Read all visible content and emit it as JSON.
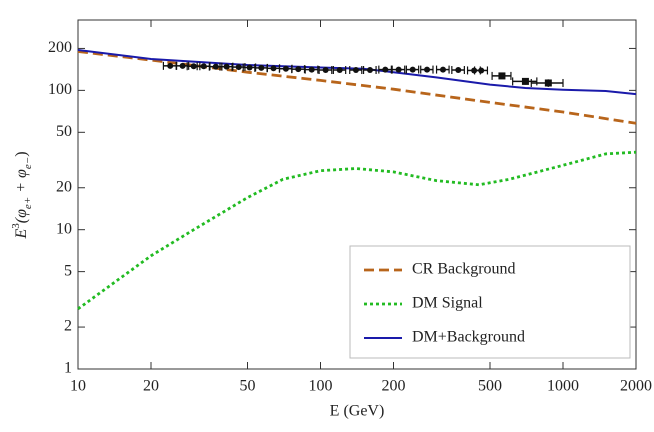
{
  "chart_data": {
    "type": "line",
    "xlabel": "E (GeV)",
    "ylabel": [
      "E",
      "3",
      "(φ",
      "e+",
      " + φ",
      "e−",
      ")"
    ],
    "xscale": "log",
    "yscale": "log",
    "xlim": [
      10,
      2000
    ],
    "ylim": [
      1,
      320
    ],
    "xticks": [
      10,
      20,
      50,
      100,
      200,
      500,
      1000,
      2000
    ],
    "yticks": [
      1,
      2,
      5,
      10,
      20,
      50,
      100,
      200
    ],
    "grid": false,
    "legend": "lower right",
    "series": [
      {
        "name": "CR Background",
        "color": "#b8651b",
        "dash": "dashed",
        "x": [
          10,
          20,
          50,
          100,
          200,
          500,
          1000,
          2000
        ],
        "values": [
          190,
          165,
          135,
          118,
          102,
          82,
          70,
          58
        ]
      },
      {
        "name": "DM Signal",
        "color": "#22bb22",
        "dash": "dotted",
        "x": [
          10,
          20,
          30,
          50,
          70,
          100,
          140,
          200,
          300,
          450,
          600,
          1000,
          1500,
          2000
        ],
        "values": [
          2.7,
          6.5,
          10,
          17,
          23,
          26.5,
          27.5,
          26,
          22.5,
          21,
          23,
          29,
          35,
          36
        ]
      },
      {
        "name": "DM+Background",
        "color": "#1a1aaa",
        "dash": "solid",
        "x": [
          10,
          20,
          50,
          100,
          150,
          200,
          300,
          500,
          700,
          1000,
          1500,
          2000
        ],
        "values": [
          195,
          168,
          152,
          146,
          143,
          135,
          124,
          110,
          104,
          101,
          99,
          94
        ]
      }
    ],
    "points": {
      "color": "#111",
      "x": [
        24,
        27,
        30,
        33,
        37,
        41,
        46,
        51,
        57,
        64,
        72,
        81,
        92,
        105,
        120,
        140,
        160,
        185,
        210,
        240,
        275,
        320,
        370,
        430,
        460,
        560,
        700,
        870
      ],
      "values": [
        150,
        150,
        149,
        149,
        148,
        148,
        147,
        146,
        145,
        144,
        143,
        142,
        141,
        140,
        140,
        140,
        140,
        141,
        141,
        141,
        141,
        141,
        140,
        139,
        139,
        127,
        116,
        113
      ],
      "xerr": [
        1.5,
        1.6,
        1.8,
        2,
        2.2,
        2.5,
        2.8,
        3,
        3.4,
        3.8,
        4.3,
        4.9,
        5.5,
        6.3,
        7,
        8,
        9.5,
        11,
        12.5,
        14,
        16,
        19,
        22,
        26,
        28,
        50,
        80,
        130
      ],
      "yerr": [
        5,
        5,
        5,
        5,
        5,
        5,
        5,
        5,
        5,
        5,
        5,
        5,
        5,
        5,
        5,
        5,
        5,
        5,
        5,
        5,
        5,
        5,
        5,
        5,
        5,
        6,
        6,
        7
      ]
    }
  }
}
